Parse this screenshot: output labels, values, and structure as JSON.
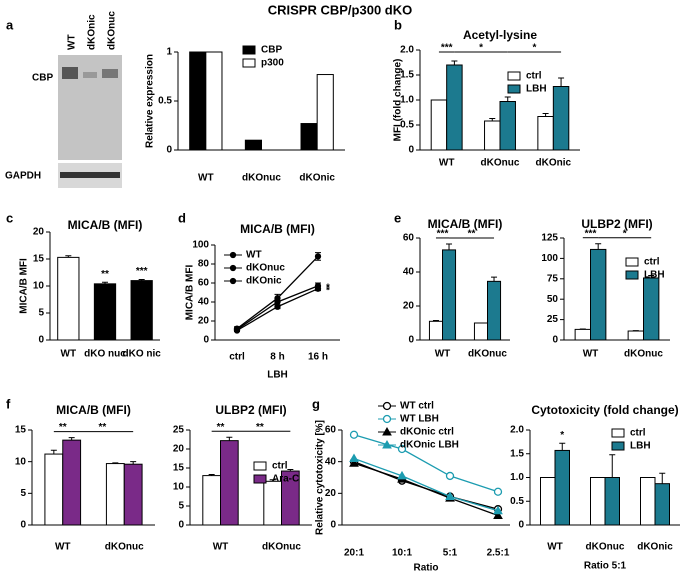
{
  "figure_title": "CRISPR CBP/p300 dKO",
  "chart_data": [
    {
      "type": "blot",
      "panel": "a",
      "lanes": [
        "WT",
        "dKOnic",
        "dKOnuc"
      ],
      "rows": [
        "CBP",
        "GAPDH"
      ]
    },
    {
      "type": "bar",
      "ylabel": "Relative expression",
      "categories": [
        "WT",
        "dKOnuc",
        "dKOnic"
      ],
      "series": [
        {
          "name": "CBP",
          "color": "#000000",
          "values": [
            1,
            0.1,
            0.27
          ]
        },
        {
          "name": "p300",
          "color": "#ffffff",
          "values": [
            1,
            0,
            0.77
          ]
        }
      ],
      "ylim": [
        0,
        1
      ],
      "yticks": [
        0,
        0.5,
        1
      ],
      "legend": "upper right"
    },
    {
      "type": "bar",
      "panel": "b",
      "title": "Acetyl-lysine",
      "ylabel": "MFI (fold change)",
      "categories": [
        "WT",
        "dKOnuc",
        "dKOnic"
      ],
      "series": [
        {
          "name": "ctrl",
          "color": "#ffffff",
          "values": [
            1,
            0.58,
            0.67
          ],
          "errors": [
            0,
            0.05,
            0.06
          ]
        },
        {
          "name": "LBH",
          "color": "#1c7a8f",
          "values": [
            1.7,
            0.97,
            1.27
          ],
          "errors": [
            0.08,
            0.09,
            0.17
          ]
        }
      ],
      "ylim": [
        0,
        2
      ],
      "yticks": [
        0,
        0.5,
        {
          "value": 1,
          "label": "1.0"
        },
        1.5,
        {
          "value": 2,
          "label": "2.0"
        }
      ],
      "annotations": [
        {
          "text": "***",
          "from": [
            0,
            0
          ],
          "to": [
            1,
            0
          ]
        },
        {
          "text": "*",
          "from": [
            1,
            0
          ],
          "to": [
            1,
            1
          ]
        },
        {
          "text": "*",
          "from": [
            1,
            1
          ],
          "to": [
            1,
            2
          ]
        }
      ],
      "legend": "upper right"
    },
    {
      "type": "bar",
      "panel": "c",
      "title": "MICA/B (MFI)",
      "ylabel": "MICA/B MFI",
      "categories": [
        "WT",
        "dKO nuc",
        "dKO nic"
      ],
      "values": [
        15.3,
        10.4,
        11
      ],
      "errors": [
        0.3,
        0.3,
        0.2
      ],
      "colors": [
        "#ffffff",
        "#000000",
        "#000000"
      ],
      "ylim": [
        0,
        20
      ],
      "yticks": [
        0,
        5,
        10,
        15,
        20
      ],
      "annotations": [
        {
          "text": "**",
          "at": [
            0,
            1
          ]
        },
        {
          "text": "***",
          "at": [
            0,
            2
          ]
        }
      ]
    },
    {
      "type": "line",
      "panel": "d",
      "title": "MICA/B (MFI)",
      "ylabel": "MICA/B MFI",
      "xlabel": "LBH",
      "categories": [
        "ctrl",
        "8 h",
        "16 h"
      ],
      "series": [
        {
          "name": "WT",
          "color": "#000000",
          "marker": "circle",
          "values": [
            12,
            44,
            88
          ],
          "errors": [
            2,
            4,
            4
          ]
        },
        {
          "name": "dKOnuc",
          "color": "#000000",
          "marker": "circle",
          "values": [
            11,
            40,
            57
          ],
          "errors": [
            1,
            3,
            3
          ]
        },
        {
          "name": "dKOnic",
          "color": "#000000",
          "marker": "circle",
          "values": [
            10,
            35,
            54
          ],
          "errors": [
            1,
            2,
            2
          ]
        }
      ],
      "ylim": [
        0,
        100
      ],
      "yticks": [
        0,
        20,
        40,
        60,
        80,
        100
      ],
      "annotations": [
        {
          "text": "*",
          "at": [
            1,
            2
          ]
        },
        {
          "text": "*",
          "at": [
            2,
            2
          ]
        }
      ],
      "legend": "upper left"
    },
    {
      "type": "bar",
      "panel": "e",
      "title": "MICA/B (MFI)",
      "categories": [
        "WT",
        "dKOnuc"
      ],
      "series": [
        {
          "name": "ctrl",
          "color": "#ffffff",
          "values": [
            11,
            10
          ],
          "errors": [
            0.5,
            0
          ]
        },
        {
          "name": "LBH",
          "color": "#1c7a8f",
          "values": [
            53,
            34.5
          ],
          "errors": [
            3.5,
            2.5
          ]
        }
      ],
      "ylim": [
        0,
        60
      ],
      "yticks": [
        0,
        20,
        40,
        60
      ],
      "annotations": [
        {
          "text": "***",
          "from": [
            0,
            0
          ],
          "to": [
            1,
            0
          ]
        },
        {
          "text": "**",
          "from": [
            1,
            0
          ],
          "to": [
            1,
            1
          ]
        }
      ]
    },
    {
      "type": "bar",
      "title": "ULBP2 (MFI)",
      "categories": [
        "WT",
        "dKOnuc"
      ],
      "series": [
        {
          "name": "ctrl",
          "color": "#ffffff",
          "values": [
            13,
            11
          ],
          "errors": [
            0.5,
            0.5
          ]
        },
        {
          "name": "LBH",
          "color": "#1c7a8f",
          "values": [
            111,
            76
          ],
          "errors": [
            7,
            3
          ]
        }
      ],
      "ylim": [
        0,
        125
      ],
      "yticks": [
        0,
        25,
        50,
        75,
        100,
        125
      ],
      "annotations": [
        {
          "text": "***",
          "from": [
            0,
            0
          ],
          "to": [
            1,
            0
          ]
        },
        {
          "text": "*",
          "from": [
            1,
            0
          ],
          "to": [
            1,
            1
          ]
        }
      ],
      "legend": "upper right"
    },
    {
      "type": "bar",
      "panel": "f",
      "title": "MICA/B (MFI)",
      "categories": [
        "WT",
        "dKOnuc"
      ],
      "series": [
        {
          "name": "ctrl",
          "color": "#ffffff",
          "values": [
            11.2,
            9.7
          ],
          "errors": [
            0.6,
            0.1
          ]
        },
        {
          "name": "Ara-C",
          "color": "#7a2a88",
          "values": [
            13.4,
            9.6
          ],
          "errors": [
            0.4,
            0.4
          ]
        }
      ],
      "ylim": [
        0,
        15
      ],
      "yticks": [
        0,
        5,
        10,
        15
      ],
      "annotations": [
        {
          "text": "**",
          "from": [
            0,
            0
          ],
          "to": [
            1,
            0
          ]
        },
        {
          "text": "**",
          "from": [
            1,
            0
          ],
          "to": [
            1,
            1
          ]
        }
      ]
    },
    {
      "type": "bar",
      "title": "ULBP2 (MFI)",
      "categories": [
        "WT",
        "dKOnuc"
      ],
      "series": [
        {
          "name": "ctrl",
          "color": "#ffffff",
          "values": [
            13,
            11.5
          ],
          "errors": [
            0.3,
            0.4
          ]
        },
        {
          "name": "Ara-C",
          "color": "#7a2a88",
          "values": [
            22.2,
            14.2
          ],
          "errors": [
            0.9,
            0.4
          ]
        }
      ],
      "ylim": [
        0,
        25
      ],
      "yticks": [
        0,
        5,
        10,
        15,
        20,
        25
      ],
      "annotations": [
        {
          "text": "**",
          "from": [
            0,
            0
          ],
          "to": [
            1,
            0
          ]
        },
        {
          "text": "**",
          "from": [
            1,
            0
          ],
          "to": [
            1,
            1
          ]
        }
      ],
      "legend": "upper right"
    },
    {
      "type": "line",
      "panel": "g",
      "ylabel": "Relative cytotoxicity [%]",
      "xlabel": "Ratio",
      "categories": [
        "20:1",
        "10:1",
        "5:1",
        "2.5:1"
      ],
      "series": [
        {
          "name": "WT ctrl",
          "color": "#000000",
          "marker": "circle-open",
          "values": [
            40,
            28,
            18,
            10
          ]
        },
        {
          "name": "WT LBH",
          "color": "#1c9cb0",
          "marker": "circle-open",
          "values": [
            57,
            48,
            31,
            21
          ]
        },
        {
          "name": "dKOnic ctrl",
          "color": "#000000",
          "marker": "triangle",
          "values": [
            39,
            29,
            17,
            6
          ]
        },
        {
          "name": "dKOnic LBH",
          "color": "#1c9cb0",
          "marker": "triangle",
          "values": [
            42,
            31,
            18,
            9
          ]
        }
      ],
      "ylim": [
        0,
        60
      ],
      "yticks": [
        0,
        20,
        40,
        60
      ],
      "legend": "upper center"
    },
    {
      "type": "bar",
      "title": "Cytotoxicity (fold change)",
      "xlabel": "Ratio 5:1",
      "categories": [
        "WT",
        "dKOnuc",
        "dKOnic"
      ],
      "series": [
        {
          "name": "ctrl",
          "color": "#ffffff",
          "values": [
            1,
            1,
            1
          ],
          "errors": [
            0,
            0,
            0
          ]
        },
        {
          "name": "LBH",
          "color": "#1c7a8f",
          "values": [
            1.57,
            1.0,
            0.87
          ],
          "errors": [
            0.15,
            0.48,
            0.22
          ]
        }
      ],
      "ylim": [
        0,
        2
      ],
      "yticks": [
        0,
        0.5,
        {
          "value": 1,
          "label": "1.0"
        },
        1.5,
        {
          "value": 2,
          "label": "2.0"
        }
      ],
      "annotations": [
        {
          "text": "*",
          "at": [
            1,
            0
          ]
        }
      ],
      "legend": "upper right"
    }
  ]
}
